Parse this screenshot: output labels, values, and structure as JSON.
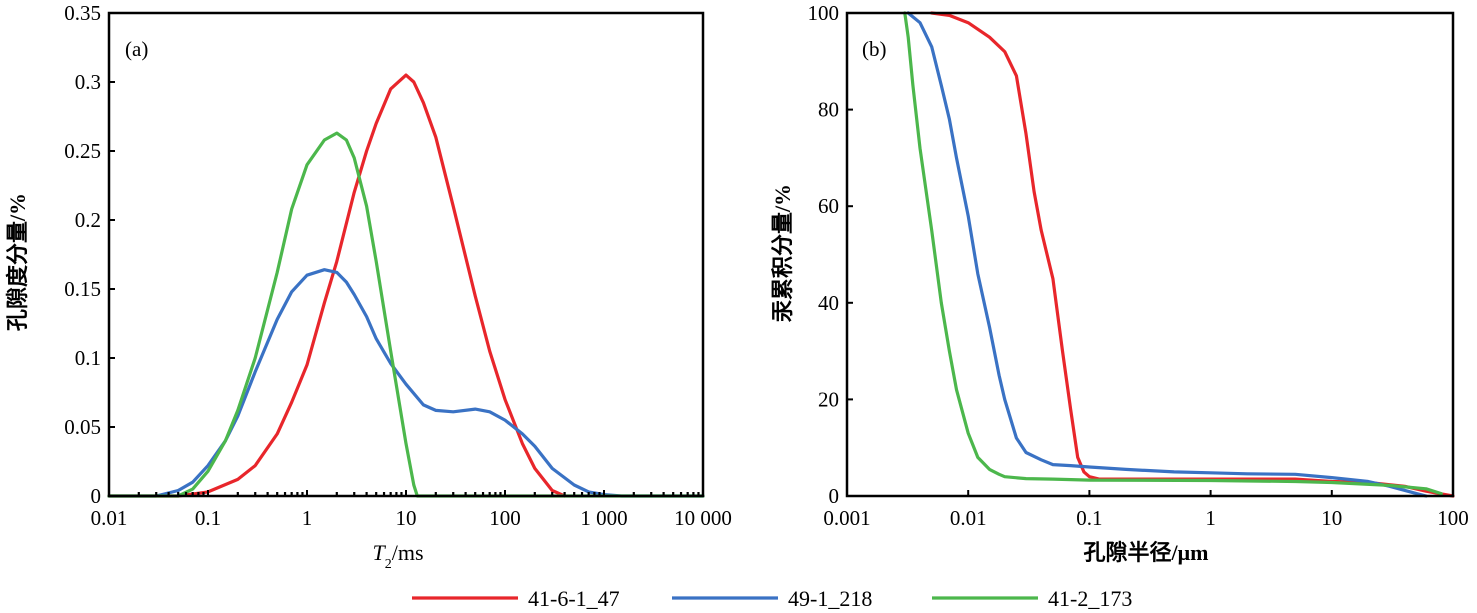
{
  "colors": {
    "41-6-1_47": "#e8262b",
    "49-1_218": "#3a72c4",
    "41-2_173": "#4cb74c",
    "axis": "#000000"
  },
  "legend": {
    "placement": "bottom",
    "items": [
      {
        "label": "41-6-1_47",
        "color": "#e8262b"
      },
      {
        "label": "49-1_218",
        "color": "#3a72c4"
      },
      {
        "label": "41-2_173",
        "color": "#4cb74c"
      }
    ]
  },
  "chart_data": [
    {
      "panel": "(a)",
      "type": "line",
      "xscale": "log",
      "xlim": [
        0.01,
        10000
      ],
      "ylim": [
        0,
        0.35
      ],
      "xlabel_italic": "T",
      "xlabel_sub": "2",
      "xlabel_rest": "/ms",
      "ylabel": "孔隙度分量/%",
      "xticks": [
        0.01,
        0.1,
        1,
        10,
        100,
        1000,
        10000
      ],
      "xtick_labels": [
        "0.01",
        "0.1",
        "1",
        "10",
        "100",
        "1 000",
        "10 000"
      ],
      "yticks": [
        0,
        0.05,
        0.1,
        0.15,
        0.2,
        0.25,
        0.3,
        0.35
      ],
      "ytick_labels": [
        "0",
        "0.05",
        "0.1",
        "0.15",
        "0.2",
        "0.25",
        "0.3",
        "0.35"
      ],
      "grid": false,
      "series": [
        {
          "name": "41-6-1_47",
          "color": "#e8262b",
          "x": [
            0.01,
            0.05,
            0.1,
            0.2,
            0.3,
            0.5,
            0.7,
            1,
            1.5,
            2,
            3,
            4,
            5,
            7,
            10,
            12,
            15,
            20,
            30,
            50,
            70,
            100,
            150,
            200,
            300,
            400
          ],
          "y": [
            0,
            0,
            0.003,
            0.012,
            0.022,
            0.045,
            0.068,
            0.095,
            0.14,
            0.17,
            0.22,
            0.25,
            0.27,
            0.295,
            0.305,
            0.3,
            0.285,
            0.26,
            0.21,
            0.145,
            0.105,
            0.07,
            0.038,
            0.02,
            0.004,
            0
          ]
        },
        {
          "name": "49-1_218",
          "color": "#3a72c4",
          "x": [
            0.01,
            0.03,
            0.05,
            0.07,
            0.1,
            0.15,
            0.2,
            0.3,
            0.5,
            0.7,
            1,
            1.5,
            2,
            2.5,
            3,
            4,
            5,
            7,
            10,
            15,
            20,
            30,
            50,
            70,
            100,
            150,
            200,
            300,
            500,
            700,
            1000,
            1500,
            2000,
            10000
          ],
          "y": [
            0,
            0,
            0.004,
            0.01,
            0.022,
            0.04,
            0.058,
            0.09,
            0.128,
            0.148,
            0.16,
            0.164,
            0.162,
            0.155,
            0.146,
            0.13,
            0.114,
            0.096,
            0.081,
            0.066,
            0.062,
            0.061,
            0.063,
            0.061,
            0.055,
            0.045,
            0.036,
            0.02,
            0.008,
            0.003,
            0.001,
            0,
            0,
            0
          ]
        },
        {
          "name": "41-2_173",
          "color": "#4cb74c",
          "x": [
            0.01,
            0.05,
            0.07,
            0.1,
            0.15,
            0.2,
            0.3,
            0.5,
            0.7,
            1,
            1.5,
            2,
            2.5,
            3,
            4,
            5,
            7,
            10,
            12,
            13,
            10000
          ],
          "y": [
            0,
            0,
            0.005,
            0.018,
            0.04,
            0.062,
            0.1,
            0.162,
            0.208,
            0.24,
            0.258,
            0.263,
            0.258,
            0.245,
            0.21,
            0.17,
            0.105,
            0.038,
            0.008,
            0,
            0
          ]
        }
      ]
    },
    {
      "panel": "(b)",
      "type": "line",
      "xscale": "log",
      "xlim": [
        0.001,
        100
      ],
      "ylim": [
        0,
        100
      ],
      "xlabel": "孔隙半径/μm",
      "ylabel": "汞累积分量/%",
      "xticks": [
        0.001,
        0.01,
        0.1,
        1,
        10,
        100
      ],
      "xtick_labels": [
        "0.001",
        "0.01",
        "0.1",
        "1",
        "10",
        "100"
      ],
      "yticks": [
        0,
        20,
        40,
        60,
        80,
        100
      ],
      "ytick_labels": [
        "0",
        "20",
        "40",
        "60",
        "80",
        "100"
      ],
      "grid": false,
      "series": [
        {
          "name": "41-6-1_47",
          "color": "#e8262b",
          "x": [
            0.005,
            0.007,
            0.01,
            0.015,
            0.02,
            0.025,
            0.03,
            0.035,
            0.04,
            0.05,
            0.06,
            0.07,
            0.08,
            0.09,
            0.1,
            0.12,
            0.2,
            1,
            5,
            10,
            20,
            40,
            60,
            100
          ],
          "y": [
            100,
            99.5,
            98,
            95,
            92,
            87,
            75,
            63,
            55,
            45,
            30,
            18,
            8,
            5,
            4,
            3.5,
            3.5,
            3.5,
            3.5,
            3,
            2.8,
            2,
            1,
            0
          ]
        },
        {
          "name": "49-1_218",
          "color": "#3a72c4",
          "x": [
            0.0032,
            0.004,
            0.005,
            0.006,
            0.007,
            0.008,
            0.01,
            0.012,
            0.015,
            0.018,
            0.02,
            0.025,
            0.03,
            0.04,
            0.05,
            0.07,
            0.1,
            0.2,
            0.5,
            1,
            2,
            5,
            10,
            20,
            30,
            50,
            60
          ],
          "y": [
            100,
            98,
            93,
            85,
            78,
            70,
            58,
            46,
            35,
            25,
            20,
            12,
            9,
            7.5,
            6.5,
            6.3,
            6,
            5.5,
            5,
            4.8,
            4.6,
            4.5,
            3.8,
            3,
            2,
            0.5,
            0
          ]
        },
        {
          "name": "41-2_173",
          "color": "#4cb74c",
          "x": [
            0.003,
            0.0032,
            0.0035,
            0.004,
            0.005,
            0.006,
            0.007,
            0.008,
            0.01,
            0.012,
            0.015,
            0.018,
            0.02,
            0.03,
            0.05,
            0.1,
            1,
            5,
            10,
            30,
            60,
            80
          ],
          "y": [
            100,
            95,
            85,
            72,
            55,
            40,
            30,
            22,
            13,
            8,
            5.5,
            4.5,
            4,
            3.6,
            3.5,
            3.3,
            3.2,
            3,
            2.8,
            2.2,
            1.5,
            0.5
          ]
        }
      ]
    }
  ]
}
